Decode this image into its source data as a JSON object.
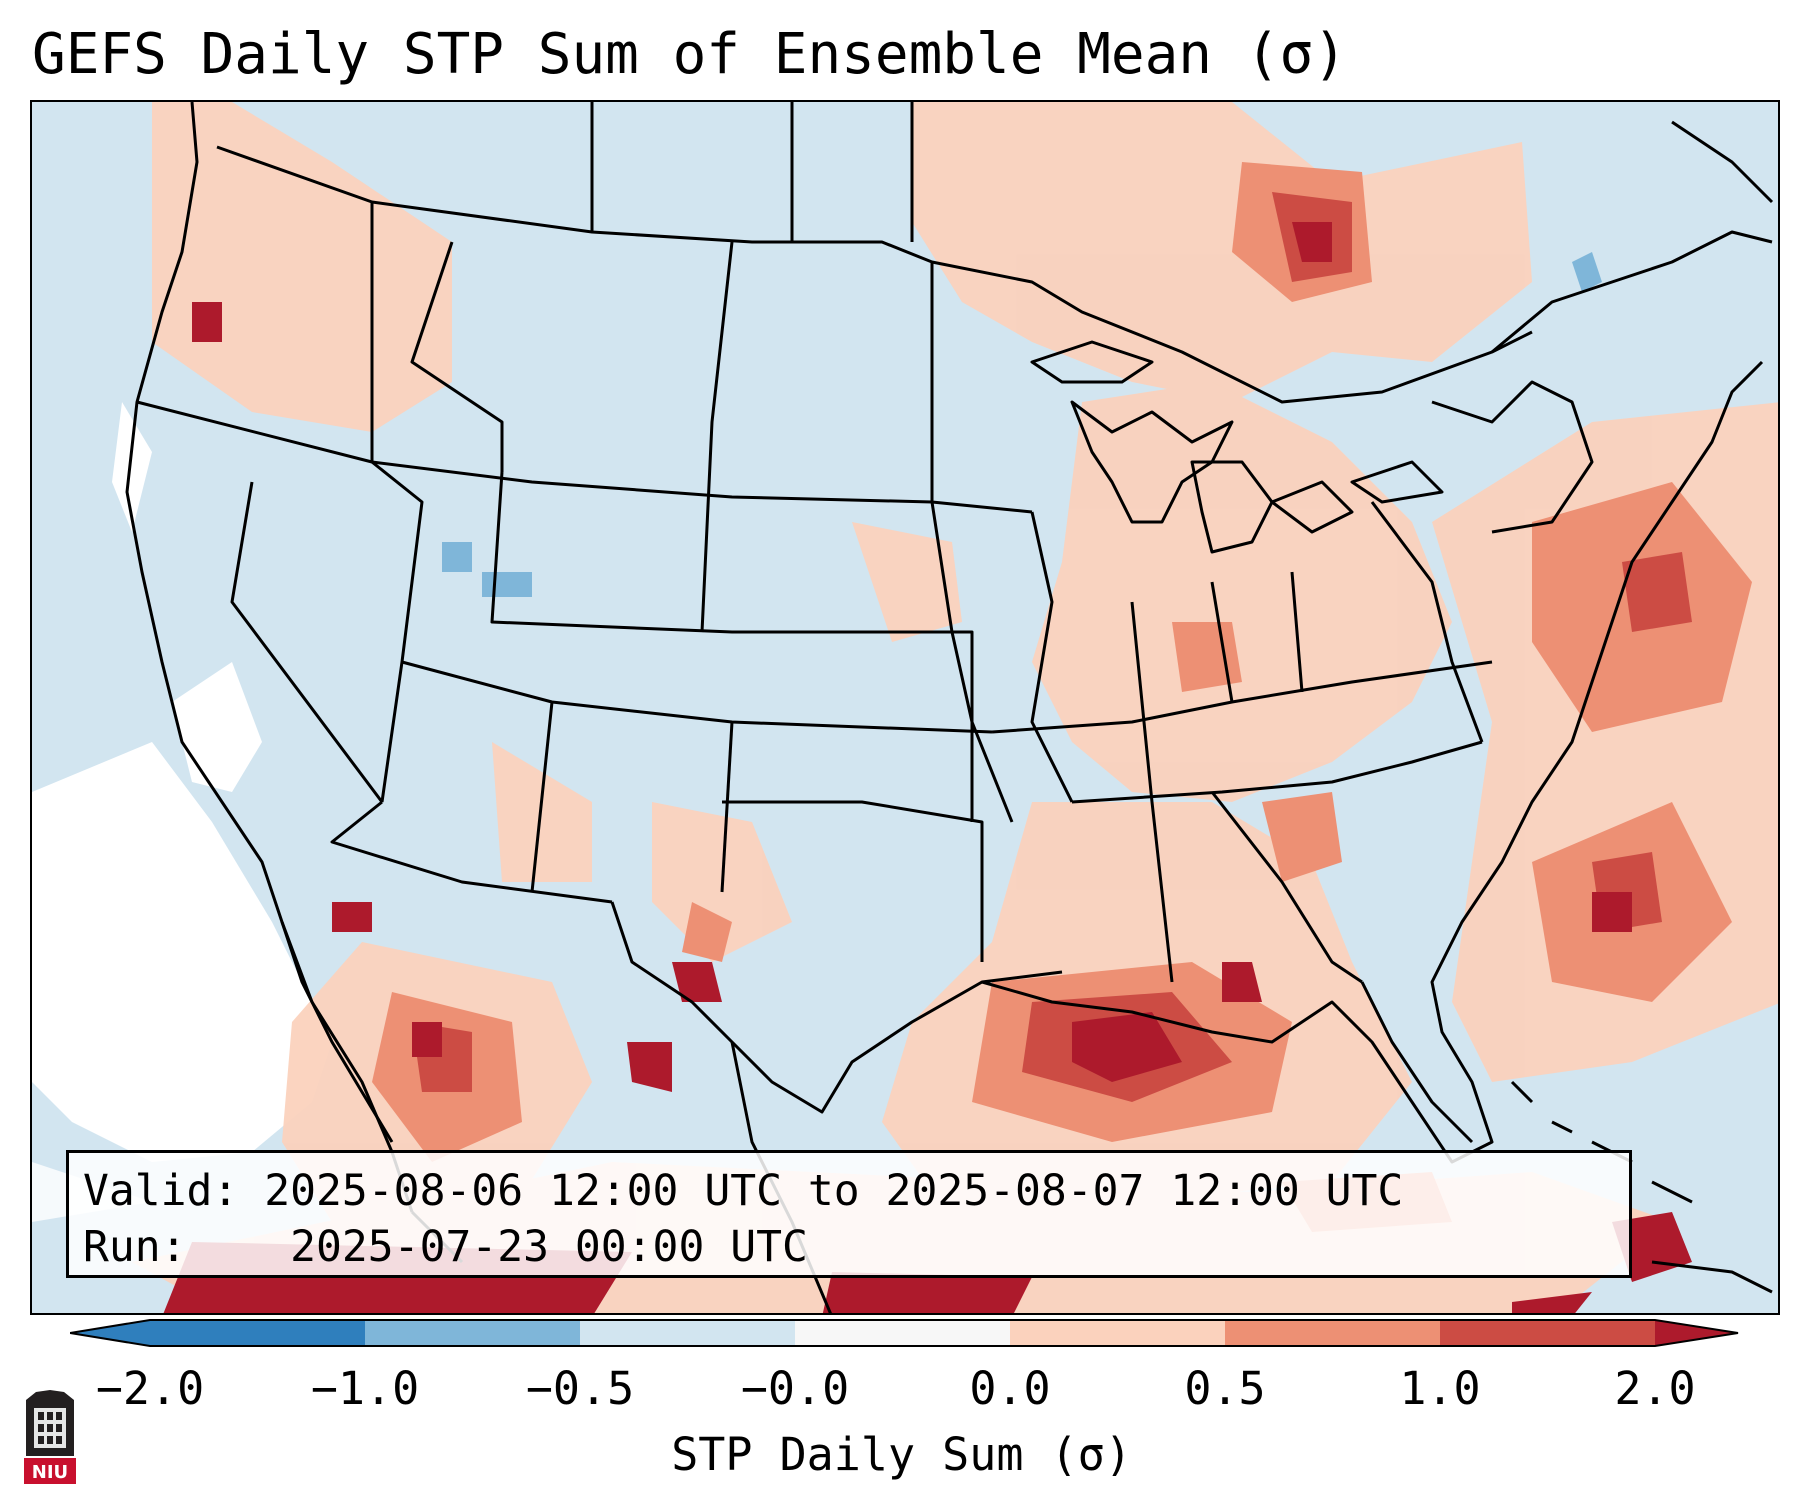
{
  "title": "GEFS Daily STP Sum of Ensemble Mean (σ)",
  "info": {
    "valid_label": "Valid:",
    "valid_value": "2025-08-06 12:00 UTC to 2025-08-07 12:00 UTC",
    "run_label": "Run:",
    "run_value": "2025-07-23 00:00 UTC"
  },
  "colorbar": {
    "label": "STP Daily Sum (σ)",
    "ticks": [
      "−2.0",
      "−1.0",
      "−0.5",
      "−0.0",
      "0.0",
      "0.5",
      "1.0",
      "2.0"
    ],
    "colors": [
      "#2f7fbd",
      "#7fb6d9",
      "#d2e5f0",
      "#f7f7f7",
      "#fbd2bd",
      "#ed9074",
      "#cc4c44",
      "#ad1a2c"
    ]
  },
  "map": {
    "region": "Continental United States",
    "ocean_color": "#d2e5f0",
    "border_color": "#000000"
  },
  "logo": {
    "text": "NIU"
  }
}
